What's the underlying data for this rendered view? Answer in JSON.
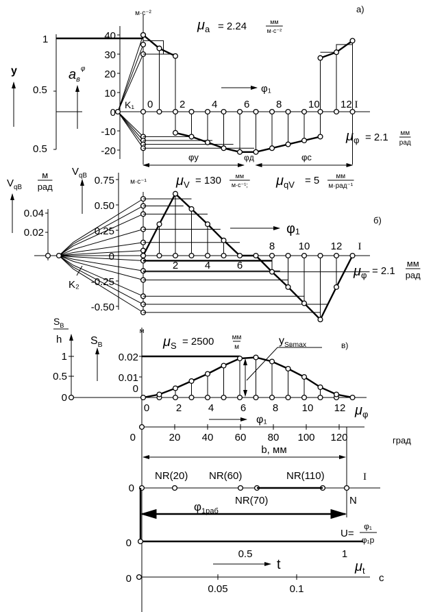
{
  "panel_a": {
    "tag": "а)",
    "unit": "м·с⁻²",
    "mu": "μ",
    "mu_sub": "a",
    "mu_value": "= 2.24",
    "mu_unit_num": "мм",
    "mu_unit_den": "м·с⁻²",
    "y_ticks": [
      "40",
      "30",
      "20",
      "10",
      "0",
      "-10",
      "-20"
    ],
    "y_tick_values": [
      40,
      30,
      20,
      10,
      0,
      -10,
      -20
    ],
    "x_labels": [
      "0",
      "2",
      "4",
      "6",
      "8",
      "10",
      "12",
      "I"
    ],
    "k_label": "K₁",
    "phi_arrow_label": "φ₁",
    "mu_phi": "μ",
    "mu_phi_sub": "φ",
    "mu_phi_value": "= 2.1",
    "mu_phi_num": "мм",
    "mu_phi_den": "рад",
    "left_ticks": [
      "1",
      "0.5",
      "0.5"
    ],
    "left_axis_label": "у",
    "accel_label": "a",
    "accel_sub": "в",
    "accel_sup": "φ",
    "phases": [
      "φу",
      "φд",
      "φс"
    ],
    "accel_upper": {
      "indices": [
        0,
        1,
        2
      ],
      "values": [
        40,
        33,
        29
      ]
    },
    "accel_upper_right": {
      "indices": [
        11,
        12,
        13
      ],
      "values": [
        28,
        31,
        37
      ]
    },
    "accel_lower": {
      "indices": [
        2,
        3,
        4,
        5,
        6,
        7,
        8,
        9,
        10,
        11
      ],
      "values": [
        -11,
        -13,
        -16,
        -19,
        -21,
        -21,
        -19,
        -17,
        -15,
        -13
      ]
    }
  },
  "panel_b": {
    "tag": "б)",
    "unit": "м·с⁻¹",
    "mu_v": "μ",
    "mu_v_sub": "V",
    "mu_v_value": "= 130",
    "mu_v_num": "мм",
    "mu_v_den": "м·с⁻¹;",
    "mu_qv": "μ",
    "mu_qv_sub": "qV",
    "mu_qv_value": "= 5",
    "mu_qv_num": "мм",
    "mu_qv_den": "м·рад⁻¹",
    "y_ticks": [
      "0.75",
      "0.50",
      "0.25",
      "0",
      "-0.25",
      "-0.50"
    ],
    "y_tick_values": [
      0.75,
      0.5,
      0.25,
      0,
      -0.25,
      -0.5
    ],
    "left_ticks": [
      "0.04",
      "0.02"
    ],
    "vqb_label": "V",
    "vqb_sub": "qB",
    "unit2_num": "м",
    "unit2_den": "рад",
    "x_labels_low": [
      "2",
      "4",
      "6"
    ],
    "x_labels_high": [
      "8",
      "10",
      "12",
      "I"
    ],
    "k_label": "K₂",
    "phi_arrow_label": "φ₁",
    "mu_phi": "μ",
    "mu_phi_sub": "φ",
    "mu_phi_value": "= 2.1",
    "mu_phi_num": "мм",
    "mu_phi_den": "рад",
    "velocity": [
      0,
      0.31,
      0.61,
      0.46,
      0.31,
      0.15,
      0,
      0,
      -0.16,
      -0.31,
      -0.47,
      -0.63,
      -0.31,
      0
    ]
  },
  "panel_c": {
    "tag": "в)",
    "unit": "м",
    "mu_s": "μ",
    "mu_s_sub": "S",
    "mu_s_value": "= 2500",
    "mu_s_num": "мм",
    "mu_s_den": "м",
    "y_ticks": [
      "0.02",
      "0.01",
      "0"
    ],
    "y_tick_values": [
      0.02,
      0.01,
      0
    ],
    "left_ticks": [
      "1",
      "0.5",
      "0"
    ],
    "left_num": "S",
    "left_num_sub": "B",
    "left_den": "h",
    "sb_label": "S",
    "sb_sub": "B",
    "ymax_label": "y",
    "ymax_sub": "Sвmax",
    "x_labels": [
      "0",
      "2",
      "4",
      "6",
      "8",
      "10",
      "12"
    ],
    "mu_phi": "μ",
    "mu_phi_sub": "φ",
    "phi_arrow_label": "φ₁",
    "displacement": [
      0,
      0.0015,
      0.0045,
      0.008,
      0.0115,
      0.0155,
      0.019,
      0.0195,
      0.0175,
      0.014,
      0.01,
      0.005,
      0.0015,
      0
    ]
  },
  "degree_axis": {
    "zero": "0",
    "ticks": [
      "20",
      "40",
      "60",
      "80",
      "100",
      "120"
    ],
    "tick_values": [
      20,
      40,
      60,
      80,
      100,
      120
    ],
    "unit": "град",
    "b_label": "b, мм"
  },
  "nr_axis": {
    "zero": "0",
    "points": [
      {
        "label": "NR(20)",
        "deg": 20
      },
      {
        "label": "NR(60)",
        "deg": 60
      },
      {
        "label": "NR(70)",
        "deg": 70
      },
      {
        "label": "NR(110)",
        "deg": 110
      }
    ],
    "end_label": "I",
    "n_label": "N",
    "phi_work": "φ",
    "phi_work_sub": "1раб"
  },
  "u_axis": {
    "zero": "0",
    "ticks": [
      "0.5",
      "1"
    ],
    "tick_values": [
      0.5,
      1
    ],
    "u_label": "U=",
    "u_num": "φ₁",
    "u_den": "φ₁р"
  },
  "time_axis": {
    "zero": "0",
    "ticks": [
      "0.05",
      "0.1"
    ],
    "tick_values": [
      0.05,
      0.1
    ],
    "t_label": "t",
    "mu_t": "μ",
    "mu_t_sub": "t",
    "unit": "с"
  }
}
